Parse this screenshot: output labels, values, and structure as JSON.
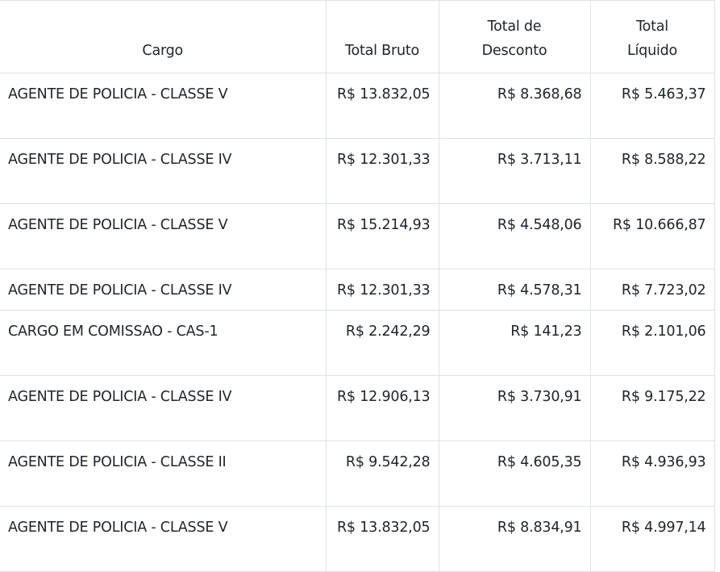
{
  "table": {
    "headers": [
      "Cargo",
      "Total Bruto",
      "Total de Desconto",
      "Total Líquido"
    ],
    "rows": [
      {
        "cargo": "AGENTE DE POLICIA - CLASSE V",
        "bruto": "R$ 13.832,05",
        "desconto": "R$ 8.368,68",
        "liquido": "R$ 5.463,37"
      },
      {
        "cargo": "AGENTE DE POLICIA - CLASSE IV",
        "bruto": "R$ 12.301,33",
        "desconto": "R$ 3.713,11",
        "liquido": "R$ 8.588,22"
      },
      {
        "cargo": "AGENTE DE POLICIA - CLASSE V",
        "bruto": "R$ 15.214,93",
        "desconto": "R$ 4.548,06",
        "liquido": "R$ 10.666,87"
      },
      {
        "cargo": "AGENTE DE POLICIA - CLASSE IV",
        "bruto": "R$ 12.301,33",
        "desconto": "R$ 4.578,31",
        "liquido": "R$ 7.723,02"
      },
      {
        "cargo": "CARGO EM COMISSAO - CAS-1",
        "bruto": "R$ 2.242,29",
        "desconto": "R$ 141,23",
        "liquido": "R$ 2.101,06"
      },
      {
        "cargo": "AGENTE DE POLICIA - CLASSE IV",
        "bruto": "R$ 12.906,13",
        "desconto": "R$ 3.730,91",
        "liquido": "R$ 9.175,22"
      },
      {
        "cargo": "AGENTE DE POLICIA - CLASSE II",
        "bruto": "R$ 9.542,28",
        "desconto": "R$ 4.605,35",
        "liquido": "R$ 4.936,93"
      },
      {
        "cargo": "AGENTE DE POLICIA - CLASSE V",
        "bruto": "R$ 13.832,05",
        "desconto": "R$ 8.834,91",
        "liquido": "R$ 4.997,14"
      }
    ]
  }
}
